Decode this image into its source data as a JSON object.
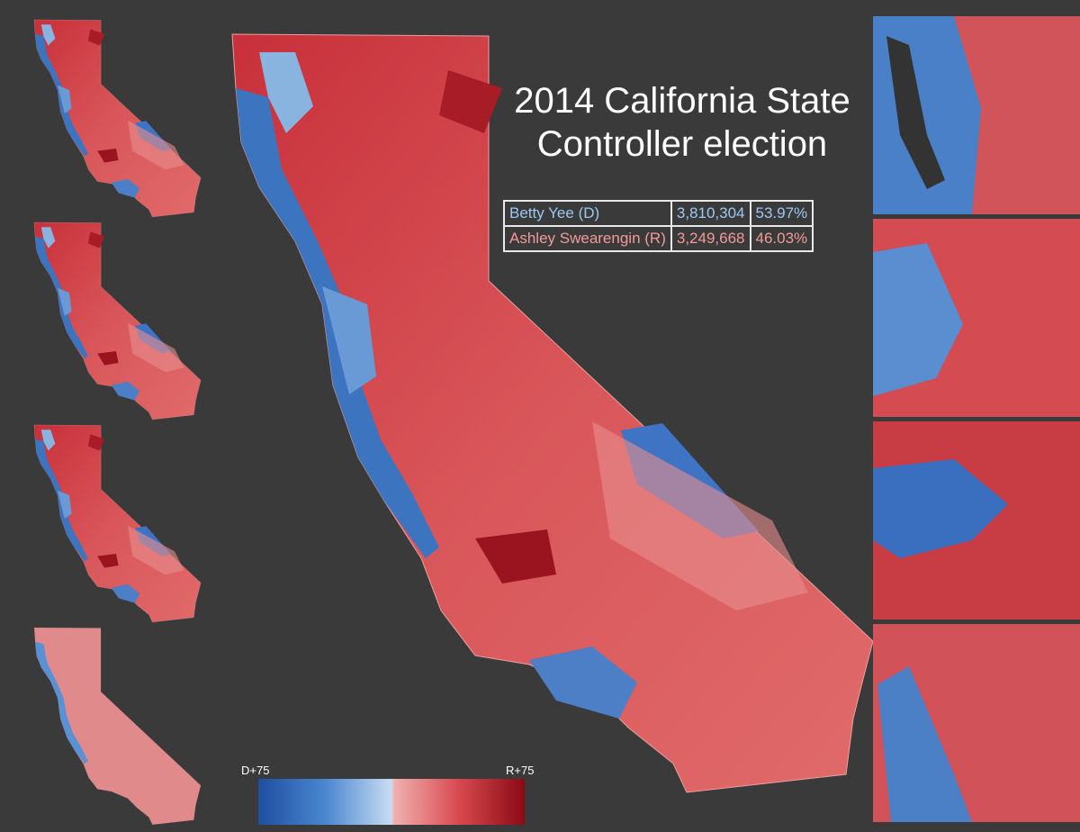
{
  "title": "2014 California State Controller election",
  "results": {
    "rows": [
      [
        "Betty Yee (D)",
        "3,810,304",
        "53.97%"
      ],
      [
        "Ashley Swearengin (R)",
        "3,249,668",
        "46.03%"
      ]
    ]
  },
  "legend": {
    "left_label": "D+75",
    "right_label": "R+75"
  }
}
